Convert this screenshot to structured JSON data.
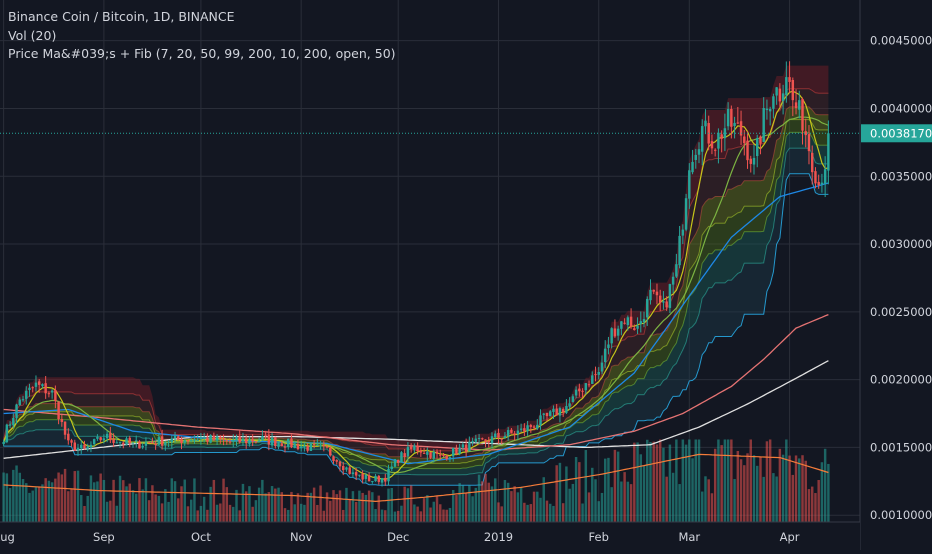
{
  "legend": {
    "title": "Binance Coin / Bitcoin, 1D, BINANCE",
    "volume": "Vol (20)",
    "indicator": "Price Ma&#039;s + Fib (7, 20, 50, 99, 200, 10, 200, open, 50)"
  },
  "colors": {
    "background": "#131722",
    "up": "#26a69a",
    "down": "#ef5350",
    "grid": "#2a2e39",
    "axis_text": "#d1d4dc",
    "price_label_bg": "#26a69a",
    "ma7": "#c6c61a",
    "ma20": "#7cb342",
    "ma50": "#1e88e5",
    "ma99": "#e57373",
    "ma200": "#e0e0e0",
    "vol_ma": "#f57c3a",
    "fib_fill_top": "#7b1e28",
    "fib_fill_mid": "#6b7a1a",
    "fib_fill_low": "#1b5e57"
  },
  "chart_data": {
    "type": "candlestick",
    "y_axis": {
      "ticks": [
        "0.0045000",
        "0.0040000",
        "0.0035000",
        "0.0030000",
        "0.0025000",
        "0.0020000",
        "0.0015000",
        "0.0010000"
      ],
      "tick_values": [
        0.0045,
        0.004,
        0.0035,
        0.003,
        0.0025,
        0.002,
        0.0015,
        0.001
      ],
      "ylim": [
        0.00095,
        0.0048
      ]
    },
    "x_axis": {
      "labels": [
        "Aug",
        "Sep",
        "Oct",
        "Nov",
        "Dec",
        "2019",
        "Feb",
        "Mar",
        "Apr"
      ],
      "label_day_index": [
        0,
        31,
        61,
        92,
        122,
        153,
        184,
        212,
        243
      ]
    },
    "last_price": 0.003817,
    "last_price_label": "0.0038170",
    "days": 256,
    "anchors": [
      [
        0,
        0.00158
      ],
      [
        5,
        0.00185
      ],
      [
        10,
        0.00196
      ],
      [
        15,
        0.0019
      ],
      [
        20,
        0.00152
      ],
      [
        25,
        0.00148
      ],
      [
        31,
        0.00158
      ],
      [
        40,
        0.00152
      ],
      [
        50,
        0.00155
      ],
      [
        61,
        0.00157
      ],
      [
        70,
        0.00154
      ],
      [
        80,
        0.00156
      ],
      [
        92,
        0.00151
      ],
      [
        100,
        0.00148
      ],
      [
        108,
        0.0013
      ],
      [
        114,
        0.00126
      ],
      [
        118,
        0.00128
      ],
      [
        122,
        0.00142
      ],
      [
        127,
        0.0015
      ],
      [
        135,
        0.00143
      ],
      [
        145,
        0.00152
      ],
      [
        153,
        0.00158
      ],
      [
        160,
        0.00162
      ],
      [
        168,
        0.00172
      ],
      [
        175,
        0.00182
      ],
      [
        180,
        0.00198
      ],
      [
        184,
        0.00205
      ],
      [
        188,
        0.00235
      ],
      [
        192,
        0.00245
      ],
      [
        196,
        0.00238
      ],
      [
        200,
        0.00262
      ],
      [
        204,
        0.00252
      ],
      [
        208,
        0.00282
      ],
      [
        210,
        0.00318
      ],
      [
        212,
        0.00362
      ],
      [
        216,
        0.00385
      ],
      [
        220,
        0.00375
      ],
      [
        224,
        0.0039
      ],
      [
        228,
        0.00382
      ],
      [
        232,
        0.00358
      ],
      [
        235,
        0.00392
      ],
      [
        238,
        0.00415
      ],
      [
        240,
        0.00412
      ],
      [
        242,
        0.00428
      ],
      [
        244,
        0.00405
      ],
      [
        247,
        0.00392
      ],
      [
        250,
        0.00362
      ],
      [
        252,
        0.00345
      ],
      [
        254,
        0.0036
      ],
      [
        255,
        0.003817
      ]
    ],
    "ma_anchors": {
      "ma99": [
        [
          0,
          0.00178
        ],
        [
          30,
          0.00172
        ],
        [
          60,
          0.00165
        ],
        [
          90,
          0.0016
        ],
        [
          120,
          0.00152
        ],
        [
          150,
          0.00148
        ],
        [
          175,
          0.00152
        ],
        [
          195,
          0.00162
        ],
        [
          210,
          0.00175
        ],
        [
          225,
          0.00195
        ],
        [
          235,
          0.00215
        ],
        [
          245,
          0.00238
        ],
        [
          255,
          0.00248
        ]
      ],
      "ma200": [
        [
          0,
          0.00142
        ],
        [
          30,
          0.0015
        ],
        [
          60,
          0.00158
        ],
        [
          90,
          0.00158
        ],
        [
          120,
          0.00156
        ],
        [
          150,
          0.00153
        ],
        [
          180,
          0.0015
        ],
        [
          200,
          0.00152
        ],
        [
          215,
          0.00165
        ],
        [
          230,
          0.00182
        ],
        [
          245,
          0.00201
        ],
        [
          255,
          0.00214
        ]
      ],
      "ma50": [
        [
          0,
          0.00175
        ],
        [
          20,
          0.00178
        ],
        [
          40,
          0.00162
        ],
        [
          70,
          0.00155
        ],
        [
          100,
          0.00153
        ],
        [
          125,
          0.00138
        ],
        [
          150,
          0.00145
        ],
        [
          175,
          0.00165
        ],
        [
          195,
          0.00205
        ],
        [
          210,
          0.00255
        ],
        [
          225,
          0.00305
        ],
        [
          240,
          0.00335
        ],
        [
          255,
          0.00345
        ]
      ]
    },
    "volume": {
      "ylim": [
        0,
        1
      ],
      "ma_anchors": [
        [
          0,
          0.45
        ],
        [
          30,
          0.38
        ],
        [
          60,
          0.35
        ],
        [
          90,
          0.32
        ],
        [
          115,
          0.25
        ],
        [
          130,
          0.3
        ],
        [
          160,
          0.42
        ],
        [
          185,
          0.58
        ],
        [
          200,
          0.7
        ],
        [
          215,
          0.82
        ],
        [
          240,
          0.78
        ],
        [
          255,
          0.6
        ]
      ]
    }
  }
}
